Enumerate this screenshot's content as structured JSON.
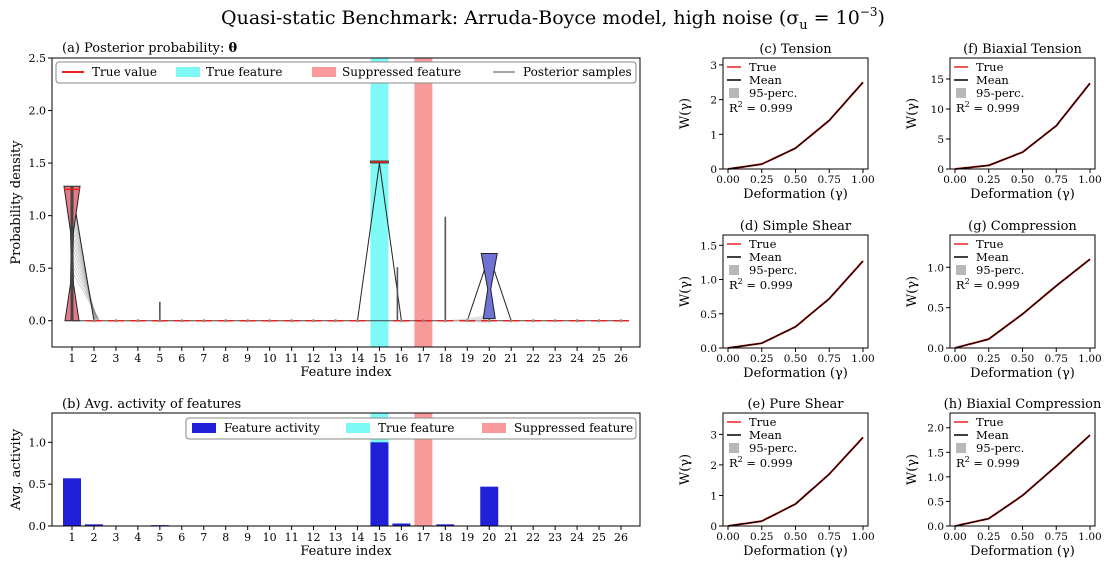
{
  "figure": {
    "title": "Quasi-static Benchmark: Arruda-Boyce model, high noise (σ",
    "title_sub": "u",
    "title_tail": " = 10",
    "title_sup": "−3",
    "title_close": ")"
  },
  "colors": {
    "true_value": "#e8221c",
    "true_feature": "#7ff9f5",
    "suppressed": "#f99b9b",
    "activity": "#2020d8",
    "mean": "#000000",
    "perc": "#b8b8b8",
    "violin_red": "#e87a88",
    "violin_blue": "#6f73d4"
  },
  "panel_a": {
    "title": "(a) Posterior  probability: ",
    "title_bold": "θ",
    "xlabel": "Feature index",
    "ylabel": "Probability density",
    "legend": [
      "True value",
      "True feature",
      "Suppressed feature",
      "Posterior samples"
    ]
  },
  "panel_b": {
    "title": "(b) Avg. activity of features",
    "xlabel": "Feature index",
    "ylabel": "Avg. activity",
    "legend": [
      "Feature activity",
      "True feature",
      "Suppressed feature"
    ]
  },
  "small_panels": {
    "xlabel": "Deformation (γ)",
    "ylabel": "W(γ)",
    "legend": [
      "True",
      "Mean",
      "95-perc."
    ],
    "r2": "R",
    "r2_sup": "2",
    "r2_val": " = 0.999"
  },
  "chart_data": [
    {
      "id": "a",
      "type": "violin",
      "categories": [
        "1",
        "2",
        "3",
        "4",
        "5",
        "6",
        "7",
        "8",
        "9",
        "10",
        "11",
        "12",
        "13",
        "14",
        "15",
        "16",
        "17",
        "18",
        "19",
        "20",
        "21",
        "22",
        "23",
        "24",
        "25",
        "26"
      ],
      "ylim": [
        -0.25,
        2.5
      ],
      "yticks": [
        "0.0",
        "0.5",
        "1.0",
        "1.5",
        "2.0",
        "2.5"
      ],
      "true_features": [
        15
      ],
      "suppressed_features": [
        17
      ],
      "violins": [
        {
          "feature": 1,
          "min": 0.0,
          "max": 1.28,
          "mean": 1.25,
          "color": "red"
        },
        {
          "feature": 15,
          "min": 1.5,
          "max": 1.52,
          "mean": 1.51,
          "color": "red"
        },
        {
          "feature": 20,
          "min": 0.0,
          "max": 0.64,
          "mean": 0.62,
          "color": "blue"
        }
      ],
      "true_values": [
        1.25,
        0,
        0,
        0,
        0,
        0,
        0,
        0,
        0,
        0,
        0,
        0,
        0,
        0,
        1.51,
        0,
        0,
        0,
        0,
        0,
        0,
        0,
        0,
        0,
        0,
        0
      ],
      "spikes": [
        {
          "feature": 1,
          "max": 1.26
        },
        {
          "feature": 5,
          "max": 0.18
        },
        {
          "feature": 16,
          "max": 0.51
        },
        {
          "feature": 18,
          "max": 0.99
        },
        {
          "feature": 20,
          "max": 0.64
        }
      ],
      "grid": false,
      "legend_position": "top"
    },
    {
      "id": "b",
      "type": "bar",
      "categories": [
        "1",
        "2",
        "3",
        "4",
        "5",
        "6",
        "7",
        "8",
        "9",
        "10",
        "11",
        "12",
        "13",
        "14",
        "15",
        "16",
        "17",
        "18",
        "19",
        "20",
        "21",
        "22",
        "23",
        "24",
        "25",
        "26"
      ],
      "values": [
        0.57,
        0.02,
        0,
        0,
        0.01,
        0,
        0,
        0,
        0,
        0,
        0,
        0,
        0,
        0,
        1.0,
        0.03,
        0,
        0.02,
        0,
        0.47,
        0,
        0,
        0,
        0,
        0,
        0
      ],
      "ylim": [
        0,
        1.35
      ],
      "yticks": [
        "0.0",
        "0.5",
        "1.0"
      ],
      "true_features": [
        15
      ],
      "suppressed_features": [
        17
      ],
      "legend_position": "top-right"
    },
    {
      "id": "c",
      "title": "(c) Tension",
      "type": "line",
      "x": [
        0,
        0.25,
        0.5,
        0.75,
        1.0
      ],
      "true": [
        0,
        0.14,
        0.6,
        1.4,
        2.5
      ],
      "mean": [
        0,
        0.14,
        0.6,
        1.4,
        2.5
      ],
      "ylim": [
        0,
        3.2
      ],
      "yticks": [
        "0",
        "1",
        "2",
        "3"
      ],
      "ytickvals": [
        0,
        1,
        2,
        3
      ],
      "r2": 0.999
    },
    {
      "id": "f",
      "title": "(f) Biaxial Tension",
      "type": "line",
      "x": [
        0,
        0.25,
        0.5,
        0.75,
        1.0
      ],
      "true": [
        0,
        0.6,
        2.8,
        7.2,
        14.3
      ],
      "mean": [
        0,
        0.6,
        2.8,
        7.2,
        14.3
      ],
      "ylim": [
        0,
        18.5
      ],
      "yticks": [
        "0",
        "5",
        "10",
        "15"
      ],
      "ytickvals": [
        0,
        5,
        10,
        15
      ],
      "r2": 0.999
    },
    {
      "id": "d",
      "title": "(d) Simple Shear",
      "type": "line",
      "x": [
        0,
        0.25,
        0.5,
        0.75,
        1.0
      ],
      "true": [
        0,
        0.07,
        0.31,
        0.72,
        1.27
      ],
      "mean": [
        0,
        0.07,
        0.31,
        0.72,
        1.27
      ],
      "ylim": [
        0,
        1.65
      ],
      "yticks": [
        "0.0",
        "0.5",
        "1.0",
        "1.5"
      ],
      "ytickvals": [
        0,
        0.5,
        1.0,
        1.5
      ],
      "r2": 0.999
    },
    {
      "id": "g",
      "title": "(g) Compression",
      "type": "line",
      "x": [
        0,
        0.25,
        0.5,
        0.75,
        1.0
      ],
      "true": [
        0,
        0.11,
        0.42,
        0.77,
        1.1
      ],
      "mean": [
        0,
        0.11,
        0.42,
        0.77,
        1.1
      ],
      "ylim": [
        0,
        1.4
      ],
      "yticks": [
        "0.0",
        "0.5",
        "1.0"
      ],
      "ytickvals": [
        0,
        0.5,
        1.0
      ],
      "r2": 0.999
    },
    {
      "id": "e",
      "title": "(e) Pure Shear",
      "type": "line",
      "x": [
        0,
        0.25,
        0.5,
        0.75,
        1.0
      ],
      "true": [
        0,
        0.16,
        0.72,
        1.7,
        2.9
      ],
      "mean": [
        0,
        0.16,
        0.72,
        1.7,
        2.9
      ],
      "ylim": [
        0,
        3.7
      ],
      "yticks": [
        "0",
        "1",
        "2",
        "3"
      ],
      "ytickvals": [
        0,
        1,
        2,
        3
      ],
      "r2": 0.999
    },
    {
      "id": "h",
      "title": "(h) Biaxial Compression",
      "type": "line",
      "x": [
        0,
        0.25,
        0.5,
        0.75,
        1.0
      ],
      "true": [
        0,
        0.15,
        0.62,
        1.22,
        1.85
      ],
      "mean": [
        0,
        0.15,
        0.62,
        1.22,
        1.85
      ],
      "ylim": [
        0,
        2.3
      ],
      "yticks": [
        "0.0",
        "0.5",
        "1.0",
        "1.5",
        "2.0"
      ],
      "ytickvals": [
        0,
        0.5,
        1.0,
        1.5,
        2.0
      ],
      "r2": 0.999
    }
  ]
}
